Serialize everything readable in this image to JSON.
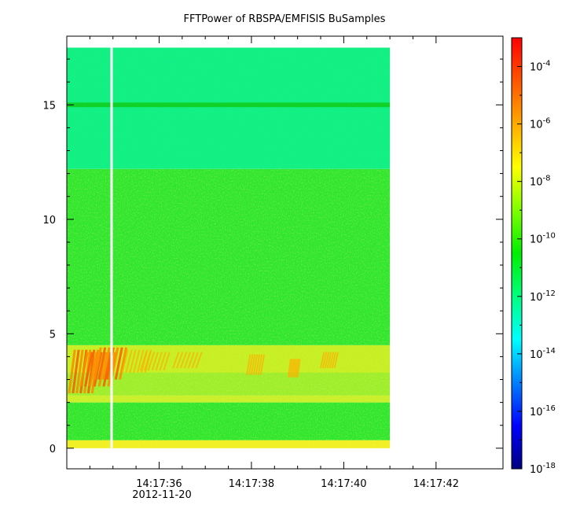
{
  "title": "FFTPower of RBSPA/EMFISIS  BuSamples",
  "date_label": "2012-11-20",
  "chart_data": {
    "type": "heatmap",
    "title": "FFTPower of RBSPA/EMFISIS  BuSamples",
    "xlabel": "",
    "ylabel": "",
    "x_ticks": [
      {
        "value": 36,
        "label": "14:17:36"
      },
      {
        "value": 38,
        "label": "14:17:38"
      },
      {
        "value": 40,
        "label": "14:17:40"
      },
      {
        "value": 42,
        "label": "14:17:42"
      }
    ],
    "x_minor": [
      34.5,
      35,
      35.5,
      36.5,
      37,
      37.5,
      38.5,
      39,
      39.5,
      40.5,
      41,
      41.5
    ],
    "xlim": [
      34.0,
      43.45
    ],
    "y_ticks": [
      0,
      5,
      10,
      15
    ],
    "y_minor": [
      1,
      2,
      3,
      4,
      6,
      7,
      8,
      9,
      11,
      12,
      13,
      14,
      16,
      17,
      18
    ],
    "ylim": [
      -0.9,
      18.0
    ],
    "data_extent": {
      "x": [
        34.0,
        41.0
      ],
      "y": [
        0.0,
        17.5
      ]
    },
    "data_gap_x": 34.97,
    "bands": [
      {
        "y": [
          0.0,
          0.35
        ],
        "level": "yellow"
      },
      {
        "y": [
          0.35,
          2.0
        ],
        "level": "green"
      },
      {
        "y": [
          2.0,
          2.3
        ],
        "level": "yellow-green"
      },
      {
        "y": [
          2.3,
          4.5
        ],
        "level": "green-yellow, orange-red patches 34.0-35.2"
      },
      {
        "y": [
          4.5,
          12.2
        ],
        "level": "green"
      },
      {
        "y": [
          12.2,
          17.5
        ],
        "level": "aqua-green"
      },
      {
        "y": [
          14.9,
          15.1
        ],
        "level": "green line"
      }
    ],
    "colorbar": {
      "scale": "log",
      "range": [
        1e-18,
        0.001
      ],
      "ticks": [
        "10-18",
        "10-16",
        "10-14",
        "10-12",
        "10-10",
        "10-8",
        "10-6",
        "10-4"
      ],
      "colors": [
        "#00007f",
        "#0000ff",
        "#007fff",
        "#00ffff",
        "#00ff7f",
        "#00ee00",
        "#7fff00",
        "#ffff00",
        "#ffaa00",
        "#ff5500",
        "#ff0000"
      ]
    }
  }
}
